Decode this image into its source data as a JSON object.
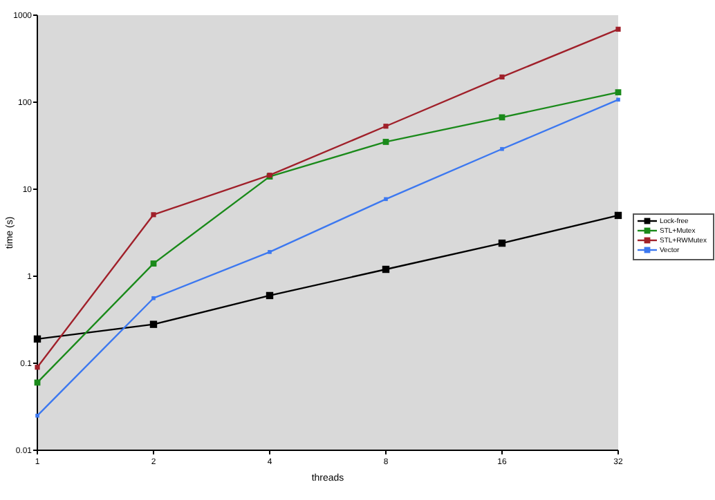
{
  "chart_data": {
    "type": "line",
    "xlabel": "threads",
    "ylabel": "time (s)",
    "categories": [
      "1",
      "2",
      "4",
      "8",
      "16",
      "32"
    ],
    "log": true,
    "ylim": [
      0.01,
      1000
    ],
    "yticks": [
      0.01,
      0.1,
      1,
      10,
      100,
      1000
    ],
    "marker": "square",
    "legend": "right",
    "series": [
      {
        "name": "Lock-free",
        "color": "#000000",
        "values": [
          0.19,
          0.28,
          0.6,
          1.2,
          2.4,
          5
        ]
      },
      {
        "name": "STL+Mutex",
        "color": "#1a8a1a",
        "values": [
          0.06,
          1.4,
          14,
          35,
          67,
          130
        ]
      },
      {
        "name": "STL+RWMutex",
        "color": "#a0202a",
        "values": [
          0.09,
          5.1,
          14.5,
          53,
          195,
          690
        ]
      },
      {
        "name": "Vector",
        "color": "#3c78f0",
        "values": [
          0.025,
          0.56,
          1.9,
          7.7,
          29,
          107
        ]
      }
    ]
  }
}
